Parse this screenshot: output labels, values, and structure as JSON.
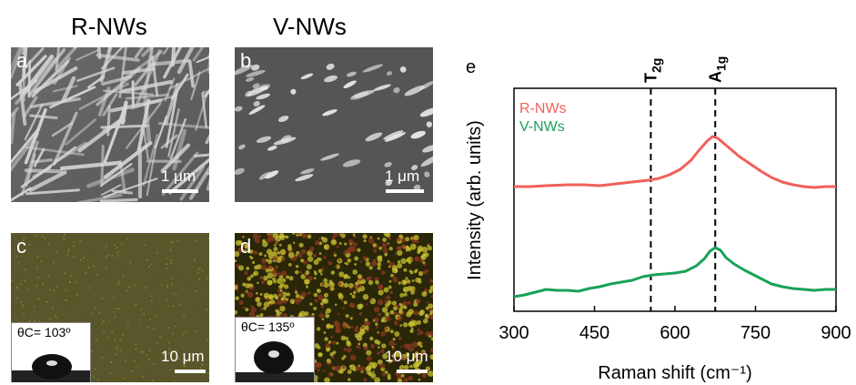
{
  "columns": {
    "left_title": "R-NWs",
    "right_title": "V-NWs"
  },
  "panels": {
    "a": {
      "label": "a",
      "scale": "1 μm"
    },
    "b": {
      "label": "b",
      "scale": "1 μm"
    },
    "c": {
      "label": "c",
      "scale": "10 μm",
      "contact_angle": "θC= 103º"
    },
    "d": {
      "label": "d",
      "scale": "10 μm",
      "contact_angle": "θC= 135º"
    }
  },
  "chart_data": {
    "type": "line",
    "panel_label": "e",
    "xlabel": "Raman shift (cm⁻¹)",
    "ylabel": "Intensity (arb. units)",
    "xlim": [
      300,
      900
    ],
    "xticks": [
      300,
      450,
      600,
      750,
      900
    ],
    "yticks_shown": false,
    "grid": false,
    "legend_position": "top-left",
    "reference_lines": [
      {
        "x": 555,
        "label": "T2g",
        "style": "dashed"
      },
      {
        "x": 675,
        "label": "A1g",
        "style": "dashed"
      }
    ],
    "series": [
      {
        "name": "R-NWs",
        "color": "#f0605a",
        "x": [
          300,
          330,
          360,
          400,
          430,
          460,
          490,
          520,
          550,
          570,
          590,
          610,
          630,
          645,
          660,
          670,
          680,
          690,
          700,
          720,
          740,
          760,
          780,
          800,
          820,
          840,
          860,
          880,
          900
        ],
        "y": [
          0.45,
          0.45,
          0.46,
          0.47,
          0.47,
          0.46,
          0.48,
          0.5,
          0.52,
          0.54,
          0.58,
          0.64,
          0.74,
          0.85,
          0.95,
          1.0,
          0.98,
          0.93,
          0.88,
          0.78,
          0.7,
          0.62,
          0.55,
          0.5,
          0.47,
          0.45,
          0.44,
          0.45,
          0.45
        ]
      },
      {
        "name": "V-NWs",
        "color": "#1aa15a",
        "x": [
          300,
          320,
          340,
          360,
          380,
          400,
          420,
          440,
          460,
          480,
          500,
          520,
          540,
          560,
          580,
          600,
          620,
          640,
          655,
          665,
          675,
          685,
          695,
          710,
          730,
          760,
          780,
          800,
          820,
          840,
          860,
          880,
          900
        ],
        "y": [
          0.04,
          0.06,
          0.09,
          0.12,
          0.11,
          0.11,
          0.1,
          0.13,
          0.15,
          0.18,
          0.2,
          0.22,
          0.26,
          0.28,
          0.29,
          0.3,
          0.32,
          0.38,
          0.46,
          0.54,
          0.58,
          0.55,
          0.47,
          0.4,
          0.33,
          0.24,
          0.18,
          0.15,
          0.13,
          0.12,
          0.11,
          0.12,
          0.12
        ]
      }
    ]
  },
  "colors": {
    "sem_bg": "#5f5f5f",
    "optical_bg": "#5a5720"
  }
}
